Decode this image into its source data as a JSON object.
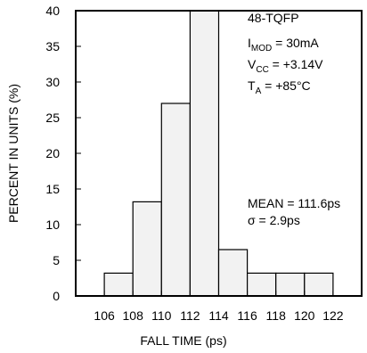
{
  "chart_data": {
    "type": "bar",
    "xlabel": "FALL TIME (ps)",
    "ylabel": "PERCENT IN UNITS (%)",
    "ylim": [
      0,
      40
    ],
    "xlim": [
      104,
      124
    ],
    "x_ticks": [
      106,
      108,
      110,
      112,
      114,
      116,
      118,
      120,
      122
    ],
    "y_ticks": [
      0,
      5,
      10,
      15,
      20,
      25,
      30,
      35,
      40
    ],
    "bins": [
      {
        "start": 106,
        "end": 108,
        "value": 3.2
      },
      {
        "start": 108,
        "end": 110,
        "value": 13.2
      },
      {
        "start": 110,
        "end": 112,
        "value": 27.0
      },
      {
        "start": 112,
        "end": 114,
        "value": 40.0
      },
      {
        "start": 114,
        "end": 116,
        "value": 6.5
      },
      {
        "start": 116,
        "end": 118,
        "value": 3.2
      },
      {
        "start": 118,
        "end": 120,
        "value": 3.2
      },
      {
        "start": 120,
        "end": 122,
        "value": 3.2
      }
    ],
    "bar_fill": "#f2f2f2",
    "bar_stroke": "#000000",
    "annotations": {
      "package": "48-TQFP",
      "imod": {
        "main": "I",
        "sub": "MOD",
        "rest": " = 30mA"
      },
      "vcc": {
        "main": "V",
        "sub": "CC",
        "rest": " = +3.14V"
      },
      "ta": {
        "main": "T",
        "sub": "A",
        "rest": " = +85°C"
      },
      "mean": "MEAN = 111.6ps",
      "sigma": "σ = 2.9ps"
    }
  }
}
